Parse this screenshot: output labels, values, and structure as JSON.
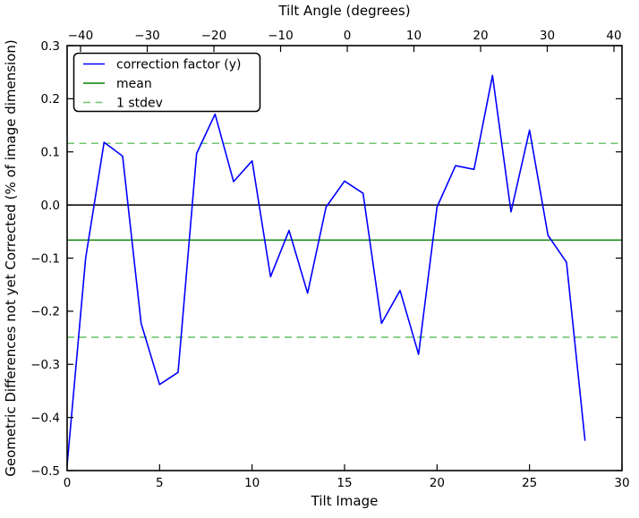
{
  "chart_data": {
    "type": "line",
    "top_axis_label": "Tilt Angle (degrees)",
    "xlabel": "Tilt Image",
    "ylabel": "Geometric Differences not yet Corrected (% of image dimension)",
    "xlim": [
      0,
      30
    ],
    "ylim": [
      -0.5,
      0.3
    ],
    "grid": false,
    "legend_position": "upper left",
    "series": [
      {
        "name": "correction factor (y)",
        "color": "#0000ff",
        "x": [
          0,
          1,
          2,
          3,
          4,
          5,
          6,
          7,
          8,
          9,
          10,
          11,
          12,
          13,
          14,
          15,
          16,
          17,
          18,
          19,
          20,
          21,
          22,
          23,
          24,
          25,
          26,
          27,
          28
        ],
        "y": [
          -0.49,
          -0.1,
          0.118,
          0.092,
          -0.223,
          -0.338,
          -0.315,
          0.097,
          0.171,
          0.044,
          0.083,
          -0.135,
          -0.048,
          -0.166,
          -0.004,
          0.045,
          0.022,
          -0.223,
          -0.161,
          -0.281,
          -0.004,
          0.074,
          0.067,
          0.244,
          -0.013,
          0.141,
          -0.057,
          -0.108,
          -0.444
        ]
      }
    ],
    "mean": -0.066,
    "stdev": 0.1825,
    "stdev_lines": [
      0.116,
      -0.249
    ],
    "zero_line": 0.0,
    "mean_color": "#008000",
    "stdev_color": "#72c472",
    "zero_color": "#000000",
    "x_ticks": {
      "values": [
        0,
        5,
        10,
        15,
        20,
        25,
        30
      ],
      "labels": [
        "0",
        "5",
        "10",
        "15",
        "20",
        "25",
        "30"
      ]
    },
    "y_ticks": {
      "values": [
        0.3,
        0.2,
        0.1,
        0.0,
        -0.1,
        -0.2,
        -0.3,
        -0.4,
        -0.5
      ],
      "labels": [
        "0.3",
        "0.2",
        "0.1",
        "0.0",
        "−0.1",
        "−0.2",
        "−0.3",
        "−0.4",
        "−0.5"
      ]
    },
    "top_ticks": {
      "values": [
        -40,
        -30,
        -20,
        -10,
        0,
        10,
        20,
        30,
        40
      ],
      "labels": [
        "−40",
        "−30",
        "−20",
        "−10",
        "0",
        "10",
        "20",
        "30",
        "40"
      ],
      "fractions": [
        0.0242,
        0.1444,
        0.2645,
        0.3847,
        0.5049,
        0.625,
        0.7452,
        0.8653,
        0.9855
      ]
    },
    "legend": [
      {
        "label": "correction factor (y)",
        "color": "#0000ff",
        "style": "solid"
      },
      {
        "label": "mean",
        "color": "#008000",
        "style": "solid"
      },
      {
        "label": "1 stdev",
        "color": "#72c472",
        "style": "dashed"
      }
    ]
  }
}
